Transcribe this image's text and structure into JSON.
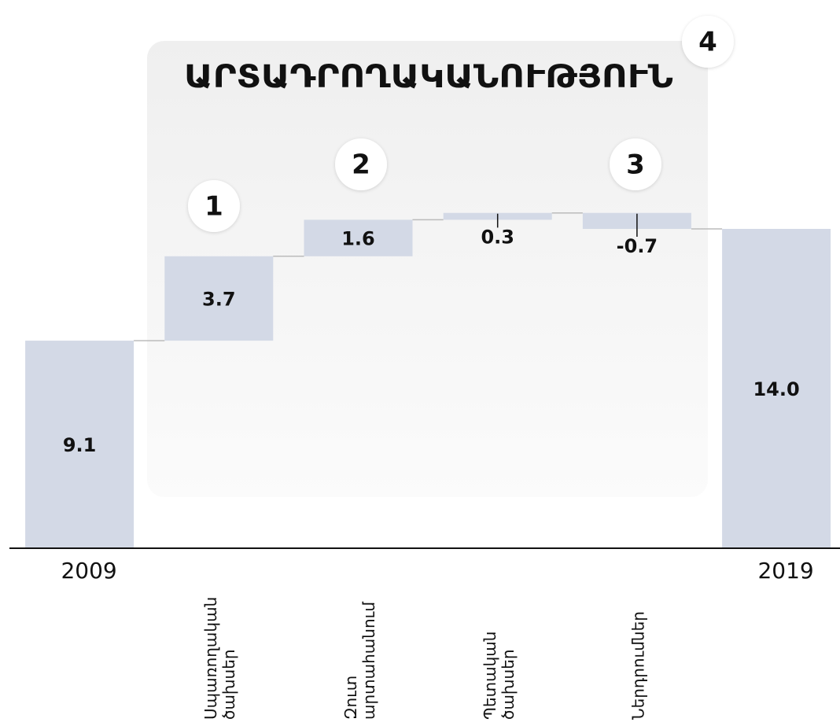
{
  "chart_data": {
    "type": "waterfall",
    "title": "ԱՐՏԱԴՐՈՂԱԿԱՆՈՒԹՅՈՒՆ",
    "categories": [
      "2009",
      "Սպառողական ծախսեր",
      "Զուտ արտահանում",
      "Պետական ծախսեր",
      "Ներդրումներ",
      "2019"
    ],
    "values": [
      9.1,
      3.7,
      1.6,
      0.3,
      -0.7,
      14.0
    ],
    "value_labels": [
      "9.1",
      "3.7",
      "1.6",
      "0.3",
      "-0.7",
      "14.0"
    ],
    "color": "#d3d9e6",
    "ylim": [
      0,
      16
    ],
    "annotations": [
      "1",
      "2",
      "3",
      "4"
    ]
  }
}
